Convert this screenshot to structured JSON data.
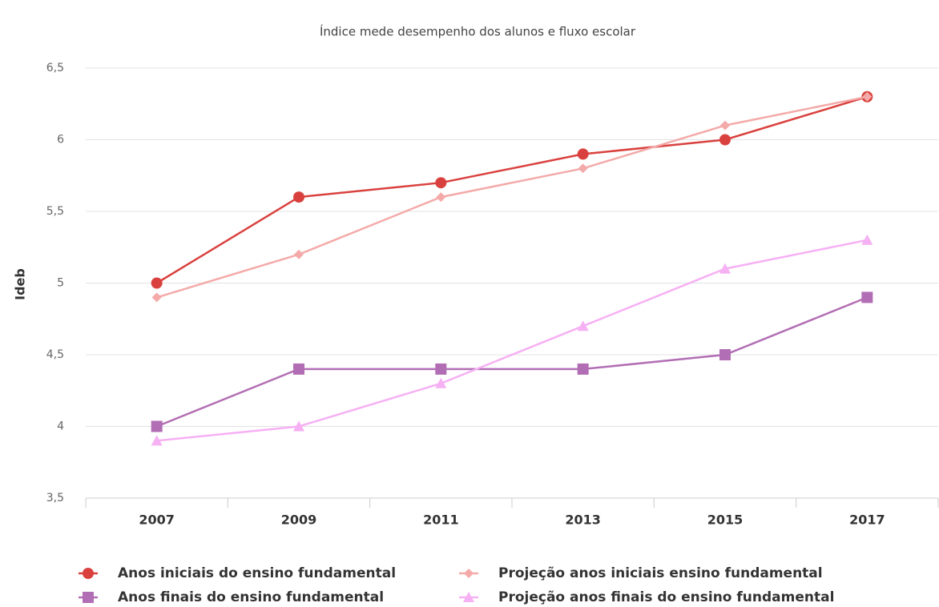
{
  "chart_data": {
    "type": "line",
    "title": "Índice mede desempenho dos alunos e fluxo escolar",
    "y_label": "Ideb",
    "categories": [
      "2007",
      "2009",
      "2011",
      "2013",
      "2015",
      "2017"
    ],
    "series": [
      {
        "name": "Anos iniciais do ensino fundamental",
        "color": "#d9413e",
        "marker": "circle",
        "values": [
          5.0,
          5.6,
          5.7,
          5.9,
          6.0,
          6.3
        ]
      },
      {
        "name": "Projeção anos iniciais ensino fundamental",
        "color": "#f4aaa9",
        "marker": "diamond",
        "values": [
          4.9,
          5.2,
          5.6,
          5.8,
          6.1,
          6.3
        ]
      },
      {
        "name": "Anos finais do ensino fundamental",
        "color": "#b26eb4",
        "marker": "square",
        "values": [
          4.0,
          4.4,
          4.4,
          4.4,
          4.5,
          4.9
        ]
      },
      {
        "name": "Projeção anos finais do ensino fundamental",
        "color": "#f6b0f4",
        "marker": "triangle",
        "values": [
          3.9,
          4.0,
          4.3,
          4.7,
          5.1,
          5.3
        ]
      }
    ],
    "ylim": [
      3.5,
      6.5
    ],
    "yticks": [
      {
        "value": 3.5,
        "label": "3,5"
      },
      4,
      {
        "value": 4.5,
        "label": "4,5"
      },
      5,
      {
        "value": 5.5,
        "label": "5,5"
      },
      6,
      {
        "value": 6.5,
        "label": "6,5"
      }
    ],
    "grid": true,
    "legend": "bottom"
  }
}
